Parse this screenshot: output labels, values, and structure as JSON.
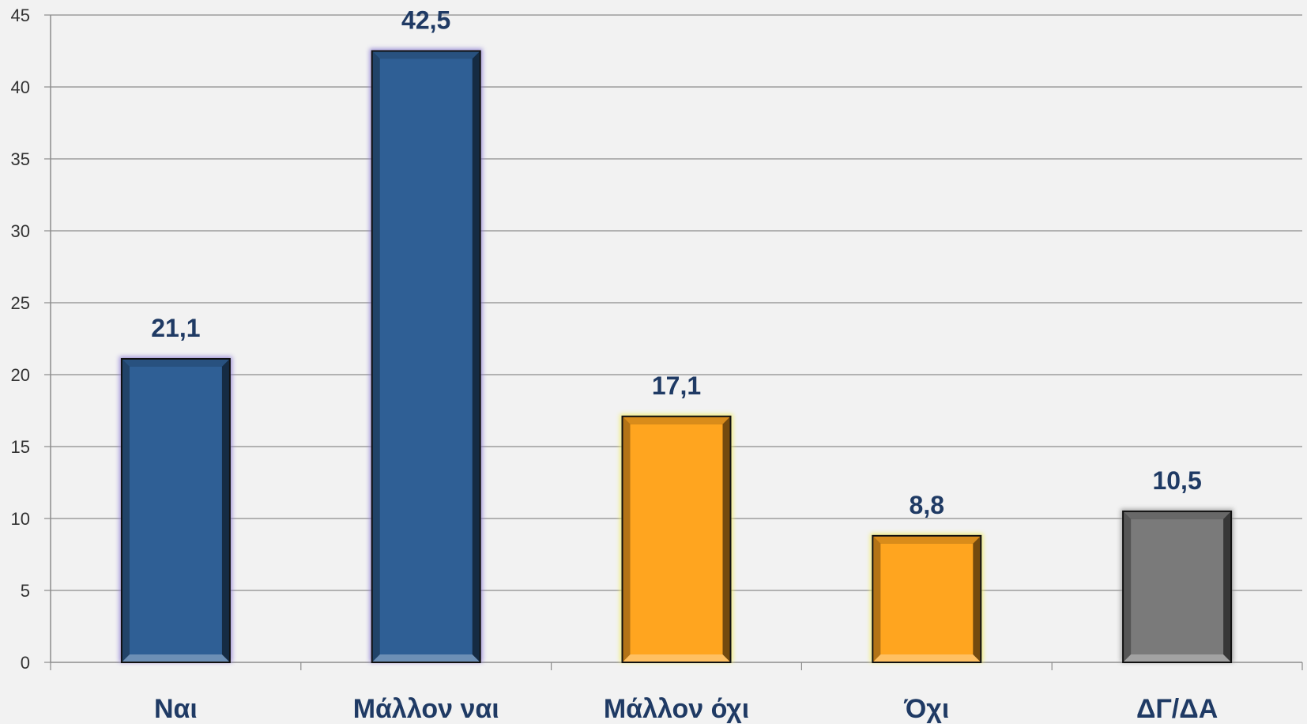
{
  "chart_data": {
    "type": "bar",
    "categories": [
      "Ναι",
      "Μάλλον ναι",
      "Μάλλον όχι",
      "Όχι",
      "ΔΓ/ΔΑ"
    ],
    "values": [
      21.1,
      42.5,
      17.1,
      8.8,
      10.5
    ],
    "value_labels": [
      "21,1",
      "42,5",
      "17,1",
      "8,8",
      "10,5"
    ],
    "colors": [
      "#2f5f95",
      "#2f5f95",
      "#ffa51f",
      "#ffa51f",
      "#7a7a7a"
    ],
    "glows": [
      "#8f7fd6",
      "#8f7fd6",
      "#f4ee63",
      "#f4ee63",
      "#9a9a9a"
    ],
    "ylim": [
      0,
      45
    ],
    "yticks": [
      0,
      5,
      10,
      15,
      20,
      25,
      30,
      35,
      40,
      45
    ],
    "grid": true,
    "title": "",
    "xlabel": "",
    "ylabel": ""
  }
}
